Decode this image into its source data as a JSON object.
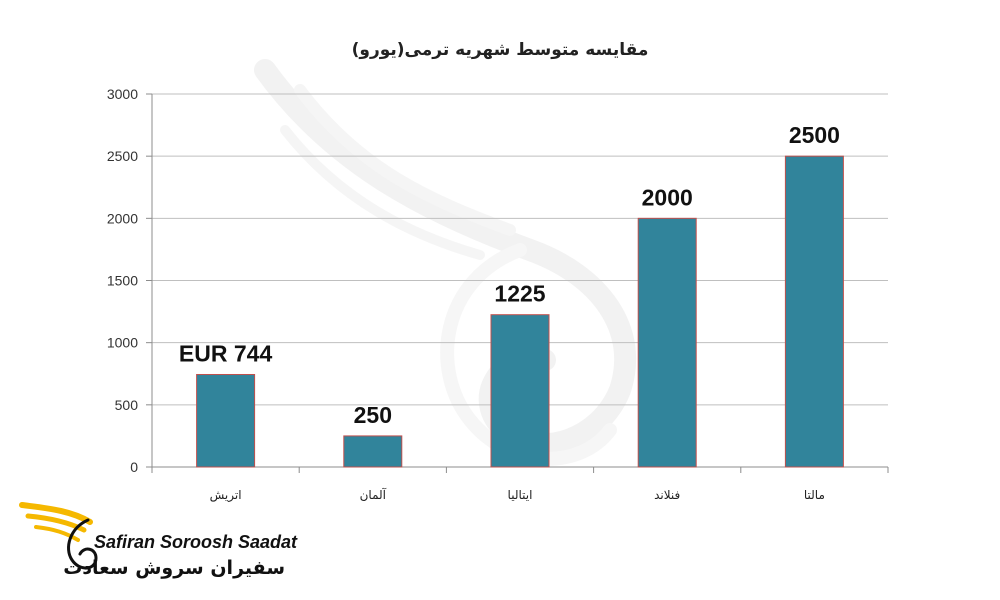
{
  "chart_data": {
    "type": "bar",
    "title": "مقایسه متوسط شهریه ترمی(یورو)",
    "categories": [
      "اتریش",
      "آلمان",
      "ایتالیا",
      "فنلاند",
      "مالتا"
    ],
    "values": [
      744,
      250,
      1225,
      2000,
      2500
    ],
    "data_labels": [
      "EUR 744",
      "250",
      "1225",
      "2000",
      "2500"
    ],
    "yticks": [
      0,
      500,
      1000,
      1500,
      2000,
      2500,
      3000
    ],
    "ylim": [
      0,
      3000
    ],
    "grid": true,
    "bar_color": "#31849b",
    "bar_border_color": "#c0504d"
  },
  "logo": {
    "latin": "Safiran Soroosh Saadat",
    "persian": "سفیران سروش سعادت",
    "accent_color": "#f5b800"
  }
}
